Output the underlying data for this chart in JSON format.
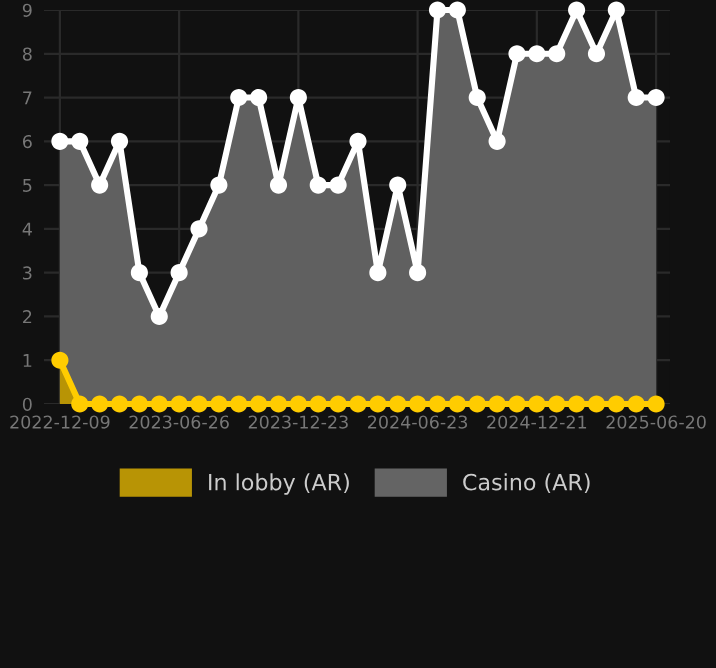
{
  "chart_data": {
    "type": "area",
    "categories": [
      "2022-12-09",
      null,
      null,
      null,
      null,
      null,
      "2023-06-26",
      null,
      null,
      null,
      null,
      null,
      "2023-12-23",
      null,
      null,
      null,
      null,
      null,
      "2024-06-23",
      null,
      null,
      null,
      null,
      null,
      "2024-12-21",
      null,
      null,
      null,
      null,
      null,
      "2025-06-20"
    ],
    "series": [
      {
        "name": "In lobby (AR)",
        "color": "#ffcc00",
        "values": [
          1,
          0,
          0,
          0,
          0,
          0,
          0,
          0,
          0,
          0,
          0,
          0,
          0,
          0,
          0,
          0,
          0,
          0,
          0,
          0,
          0,
          0,
          0,
          0,
          0,
          0,
          0,
          0,
          0,
          0,
          0
        ]
      },
      {
        "name": "Casino (AR)",
        "color": "#ffffff",
        "values": [
          6,
          6,
          5,
          6,
          3,
          2,
          3,
          4,
          5,
          7,
          7,
          5,
          7,
          5,
          5,
          6,
          3,
          5,
          3,
          9,
          9,
          7,
          6,
          8,
          8,
          8,
          9,
          8,
          9,
          7,
          7
        ]
      }
    ],
    "ylim": [
      0,
      9
    ],
    "yticks": [
      0,
      1,
      2,
      3,
      4,
      5,
      6,
      7,
      8,
      9
    ],
    "grid": true,
    "legend": "bottom",
    "marker": "circle"
  }
}
